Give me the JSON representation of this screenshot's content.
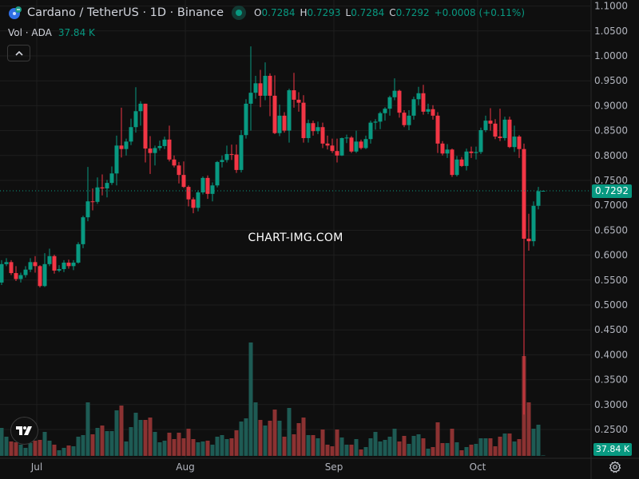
{
  "header": {
    "title": "Cardano / TetherUS · 1D · Binance",
    "ohlc": [
      {
        "key": "O",
        "value": "0.7284"
      },
      {
        "key": "H",
        "value": "0.7293"
      },
      {
        "key": "L",
        "value": "0.7284"
      },
      {
        "key": "C",
        "value": "0.7292"
      }
    ],
    "change": "+0.0008 (+0.11%)",
    "volume_label": "Vol · ADA",
    "volume_value": "37.84 K"
  },
  "watermark": "CHART-IMG.COM",
  "price_tag": "0.7292",
  "volume_tag": "37.84 K",
  "colors": {
    "up": "#089981",
    "down": "#f23645",
    "vol_up": "#1e5b54",
    "vol_down": "#8c3232",
    "grid": "#1e1e1e"
  },
  "chart_data": {
    "type": "candlestick",
    "title": "Cardano / TetherUS · 1D · Binance",
    "ylim": [
      0.2225,
      1.1135
    ],
    "y_ticks": [
      "1.1000",
      "1.0500",
      "1.0000",
      "0.9500",
      "0.9000",
      "0.8500",
      "0.8000",
      "0.7500",
      "0.7000",
      "0.6500",
      "0.6000",
      "0.5500",
      "0.5000",
      "0.4500",
      "0.4000",
      "0.3500",
      "0.3000",
      "0.2500"
    ],
    "x_ticks": [
      {
        "label": "Jul",
        "index": 7
      },
      {
        "label": "Aug",
        "index": 38
      },
      {
        "label": "Sep",
        "index": 69
      },
      {
        "label": "Oct",
        "index": 99
      }
    ],
    "candles_ohlc": [
      [
        0.545,
        0.59,
        0.54,
        0.582
      ],
      [
        0.582,
        0.594,
        0.578,
        0.586
      ],
      [
        0.586,
        0.59,
        0.56,
        0.564
      ],
      [
        0.564,
        0.578,
        0.548,
        0.552
      ],
      [
        0.552,
        0.565,
        0.545,
        0.56
      ],
      [
        0.56,
        0.578,
        0.555,
        0.571
      ],
      [
        0.571,
        0.594,
        0.566,
        0.586
      ],
      [
        0.586,
        0.598,
        0.565,
        0.578
      ],
      [
        0.578,
        0.58,
        0.535,
        0.538
      ],
      [
        0.538,
        0.604,
        0.536,
        0.582
      ],
      [
        0.582,
        0.613,
        0.578,
        0.598
      ],
      [
        0.598,
        0.601,
        0.563,
        0.569
      ],
      [
        0.569,
        0.58,
        0.566,
        0.572
      ],
      [
        0.572,
        0.59,
        0.566,
        0.585
      ],
      [
        0.585,
        0.591,
        0.573,
        0.578
      ],
      [
        0.578,
        0.59,
        0.57,
        0.585
      ],
      [
        0.585,
        0.626,
        0.583,
        0.622
      ],
      [
        0.622,
        0.679,
        0.614,
        0.676
      ],
      [
        0.676,
        0.777,
        0.668,
        0.708
      ],
      [
        0.708,
        0.734,
        0.69,
        0.707
      ],
      [
        0.707,
        0.756,
        0.703,
        0.736
      ],
      [
        0.736,
        0.762,
        0.72,
        0.734
      ],
      [
        0.734,
        0.751,
        0.716,
        0.745
      ],
      [
        0.745,
        0.778,
        0.741,
        0.764
      ],
      [
        0.764,
        0.84,
        0.74,
        0.82
      ],
      [
        0.82,
        0.896,
        0.796,
        0.813
      ],
      [
        0.813,
        0.834,
        0.8,
        0.828
      ],
      [
        0.828,
        0.874,
        0.821,
        0.857
      ],
      [
        0.857,
        0.937,
        0.846,
        0.889
      ],
      [
        0.889,
        0.909,
        0.86,
        0.904
      ],
      [
        0.904,
        0.904,
        0.786,
        0.814
      ],
      [
        0.814,
        0.839,
        0.763,
        0.805
      ],
      [
        0.805,
        0.82,
        0.78,
        0.815
      ],
      [
        0.815,
        0.83,
        0.81,
        0.819
      ],
      [
        0.819,
        0.838,
        0.813,
        0.832
      ],
      [
        0.832,
        0.86,
        0.788,
        0.792
      ],
      [
        0.792,
        0.8,
        0.776,
        0.78
      ],
      [
        0.78,
        0.787,
        0.744,
        0.761
      ],
      [
        0.761,
        0.788,
        0.735,
        0.737
      ],
      [
        0.737,
        0.74,
        0.698,
        0.712
      ],
      [
        0.712,
        0.716,
        0.684,
        0.695
      ],
      [
        0.695,
        0.73,
        0.688,
        0.726
      ],
      [
        0.726,
        0.758,
        0.722,
        0.755
      ],
      [
        0.755,
        0.76,
        0.713,
        0.723
      ],
      [
        0.723,
        0.746,
        0.708,
        0.74
      ],
      [
        0.74,
        0.789,
        0.736,
        0.787
      ],
      [
        0.787,
        0.8,
        0.776,
        0.791
      ],
      [
        0.791,
        0.82,
        0.786,
        0.803
      ],
      [
        0.803,
        0.822,
        0.791,
        0.802
      ],
      [
        0.802,
        0.822,
        0.765,
        0.771
      ],
      [
        0.771,
        0.851,
        0.766,
        0.841
      ],
      [
        0.841,
        0.913,
        0.834,
        0.904
      ],
      [
        0.904,
        1.019,
        0.85,
        0.926
      ],
      [
        0.926,
        0.96,
        0.914,
        0.945
      ],
      [
        0.945,
        0.972,
        0.897,
        0.92
      ],
      [
        0.92,
        0.987,
        0.911,
        0.96
      ],
      [
        0.96,
        0.965,
        0.879,
        0.92
      ],
      [
        0.92,
        0.961,
        0.843,
        0.845
      ],
      [
        0.845,
        0.902,
        0.839,
        0.88
      ],
      [
        0.88,
        0.887,
        0.846,
        0.85
      ],
      [
        0.85,
        0.934,
        0.826,
        0.931
      ],
      [
        0.931,
        0.966,
        0.896,
        0.912
      ],
      [
        0.912,
        0.927,
        0.888,
        0.906
      ],
      [
        0.906,
        0.921,
        0.826,
        0.835
      ],
      [
        0.835,
        0.872,
        0.826,
        0.865
      ],
      [
        0.865,
        0.87,
        0.84,
        0.849
      ],
      [
        0.849,
        0.868,
        0.843,
        0.857
      ],
      [
        0.857,
        0.866,
        0.815,
        0.824
      ],
      [
        0.824,
        0.84,
        0.812,
        0.82
      ],
      [
        0.82,
        0.834,
        0.805,
        0.809
      ],
      [
        0.809,
        0.834,
        0.786,
        0.8
      ],
      [
        0.8,
        0.836,
        0.799,
        0.835
      ],
      [
        0.835,
        0.842,
        0.825,
        0.836
      ],
      [
        0.836,
        0.839,
        0.805,
        0.808
      ],
      [
        0.808,
        0.85,
        0.805,
        0.828
      ],
      [
        0.828,
        0.832,
        0.812,
        0.815
      ],
      [
        0.815,
        0.84,
        0.813,
        0.833
      ],
      [
        0.833,
        0.87,
        0.824,
        0.866
      ],
      [
        0.866,
        0.873,
        0.852,
        0.868
      ],
      [
        0.868,
        0.888,
        0.853,
        0.885
      ],
      [
        0.885,
        0.897,
        0.87,
        0.894
      ],
      [
        0.894,
        0.92,
        0.88,
        0.917
      ],
      [
        0.917,
        0.955,
        0.911,
        0.93
      ],
      [
        0.93,
        0.932,
        0.876,
        0.886
      ],
      [
        0.886,
        0.891,
        0.857,
        0.861
      ],
      [
        0.861,
        0.891,
        0.851,
        0.88
      ],
      [
        0.88,
        0.918,
        0.872,
        0.913
      ],
      [
        0.913,
        0.938,
        0.901,
        0.925
      ],
      [
        0.925,
        0.942,
        0.882,
        0.888
      ],
      [
        0.888,
        0.904,
        0.883,
        0.893
      ],
      [
        0.893,
        0.901,
        0.872,
        0.88
      ],
      [
        0.88,
        0.887,
        0.805,
        0.824
      ],
      [
        0.824,
        0.829,
        0.8,
        0.804
      ],
      [
        0.804,
        0.823,
        0.795,
        0.812
      ],
      [
        0.812,
        0.814,
        0.757,
        0.761
      ],
      [
        0.761,
        0.799,
        0.758,
        0.792
      ],
      [
        0.792,
        0.797,
        0.777,
        0.779
      ],
      [
        0.779,
        0.814,
        0.77,
        0.808
      ],
      [
        0.808,
        0.818,
        0.795,
        0.805
      ],
      [
        0.805,
        0.818,
        0.792,
        0.807
      ],
      [
        0.807,
        0.856,
        0.803,
        0.851
      ],
      [
        0.851,
        0.88,
        0.847,
        0.87
      ],
      [
        0.87,
        0.895,
        0.85,
        0.864
      ],
      [
        0.864,
        0.873,
        0.833,
        0.838
      ],
      [
        0.838,
        0.894,
        0.829,
        0.835
      ],
      [
        0.835,
        0.878,
        0.83,
        0.872
      ],
      [
        0.872,
        0.878,
        0.815,
        0.817
      ],
      [
        0.817,
        0.86,
        0.807,
        0.838
      ],
      [
        0.838,
        0.841,
        0.795,
        0.813
      ],
      [
        0.813,
        0.824,
        0.28,
        0.633
      ],
      [
        0.633,
        0.683,
        0.609,
        0.628
      ],
      [
        0.628,
        0.708,
        0.618,
        0.699
      ],
      [
        0.699,
        0.737,
        0.692,
        0.7284
      ],
      [
        0.7284,
        0.7293,
        0.7284,
        0.7292
      ]
    ],
    "volume_millions": [
      140,
      96,
      72,
      68,
      56,
      40,
      64,
      76,
      80,
      120,
      76,
      56,
      28,
      40,
      52,
      48,
      96,
      104,
      268,
      108,
      140,
      152,
      124,
      124,
      228,
      252,
      72,
      144,
      216,
      180,
      180,
      192,
      120,
      68,
      76,
      116,
      84,
      116,
      88,
      136,
      84,
      68,
      72,
      76,
      56,
      96,
      104,
      84,
      88,
      128,
      172,
      188,
      568,
      268,
      180,
      152,
      176,
      232,
      176,
      96,
      240,
      108,
      164,
      192,
      104,
      104,
      88,
      132,
      56,
      48,
      132,
      92,
      56,
      56,
      84,
      32,
      44,
      88,
      120,
      72,
      80,
      96,
      136,
      72,
      100,
      60,
      100,
      108,
      88,
      36,
      44,
      168,
      64,
      64,
      136,
      68,
      28,
      44,
      56,
      60,
      88,
      88,
      88,
      48,
      96,
      112,
      112,
      72,
      84,
      500,
      268,
      136,
      156,
      0.03784
    ],
    "last_price": 0.7292,
    "grid": true
  }
}
